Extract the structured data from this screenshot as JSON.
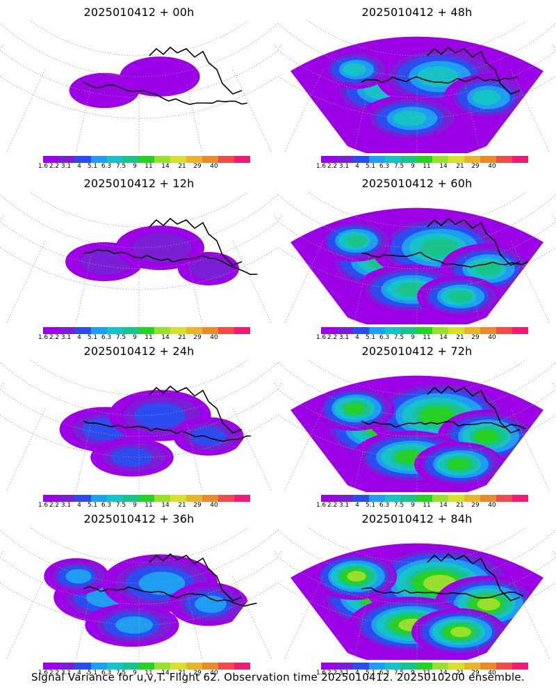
{
  "panels": [
    {
      "title": "2025010412 + 00h",
      "intensity": 0.15
    },
    {
      "title": "2025010412 + 48h",
      "intensity": 0.65
    },
    {
      "title": "2025010412 + 12h",
      "intensity": 0.25
    },
    {
      "title": "2025010412 + 60h",
      "intensity": 0.75
    },
    {
      "title": "2025010412 + 24h",
      "intensity": 0.4
    },
    {
      "title": "2025010412 + 72h",
      "intensity": 0.85
    },
    {
      "title": "2025010412 + 36h",
      "intensity": 0.55
    },
    {
      "title": "2025010412 + 84h",
      "intensity": 0.95
    }
  ],
  "colorbar": {
    "labels": [
      "1.6",
      "2.2",
      "3.1",
      "4",
      "5.1",
      "6.3",
      "7.5",
      "9",
      "11",
      "14",
      "21",
      "29",
      "40"
    ],
    "colors": [
      "#9b00e6",
      "#7a1fd6",
      "#2d4cf0",
      "#1e9ef2",
      "#14c3c8",
      "#18c48a",
      "#23d223",
      "#98e02a",
      "#d7e12b",
      "#e6b52b",
      "#e88a2c",
      "#f04a4a",
      "#f01a78"
    ]
  },
  "footer": "Signal Variance for u,v,T. Flight 62. Observation time 2025010412. 2025010200 ensemble."
}
